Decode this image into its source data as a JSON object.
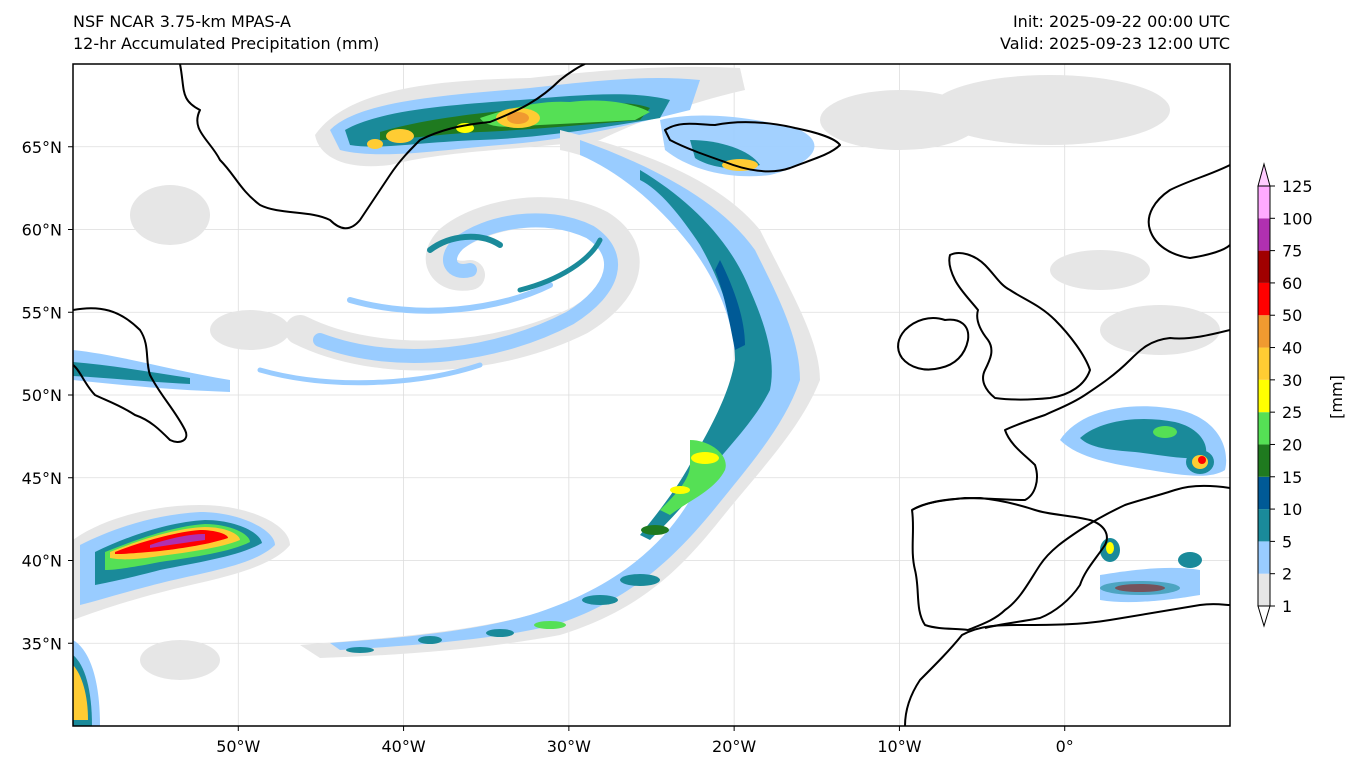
{
  "header": {
    "model": "NSF NCAR 3.75-km MPAS-A",
    "field": "12-hr Accumulated Precipitation (mm)",
    "init": "Init: 2025-09-22 00:00 UTC",
    "valid": "Valid: 2025-09-23 12:00 UTC"
  },
  "map": {
    "lon_range": [
      -60,
      10
    ],
    "lat_range": [
      30,
      70
    ],
    "lon_ticks": [
      {
        "value": -50,
        "label": "50°W"
      },
      {
        "value": -40,
        "label": "40°W"
      },
      {
        "value": -30,
        "label": "30°W"
      },
      {
        "value": -20,
        "label": "20°W"
      },
      {
        "value": -10,
        "label": "10°W"
      },
      {
        "value": 0,
        "label": "0°"
      }
    ],
    "lat_ticks": [
      {
        "value": 35,
        "label": "35°N"
      },
      {
        "value": 40,
        "label": "40°N"
      },
      {
        "value": 45,
        "label": "45°N"
      },
      {
        "value": 50,
        "label": "50°N"
      },
      {
        "value": 55,
        "label": "55°N"
      },
      {
        "value": 60,
        "label": "60°N"
      },
      {
        "value": 65,
        "label": "65°N"
      }
    ],
    "gridlines": true
  },
  "colorbar": {
    "unit": "[mm]",
    "extend": "both",
    "levels": [
      "1",
      "2",
      "5",
      "10",
      "15",
      "20",
      "25",
      "30",
      "40",
      "50",
      "60",
      "75",
      "100",
      "125"
    ],
    "colors": [
      "#e6e6e6",
      "#99ccff",
      "#1a8a9a",
      "#005a96",
      "#1f7a1f",
      "#55e055",
      "#ffff00",
      "#ffcc33",
      "#f09a30",
      "#ff0000",
      "#a00000",
      "#b030b0",
      "#ffaaff"
    ],
    "under_color": "#ffffff",
    "over_color": "#ffccff"
  }
}
